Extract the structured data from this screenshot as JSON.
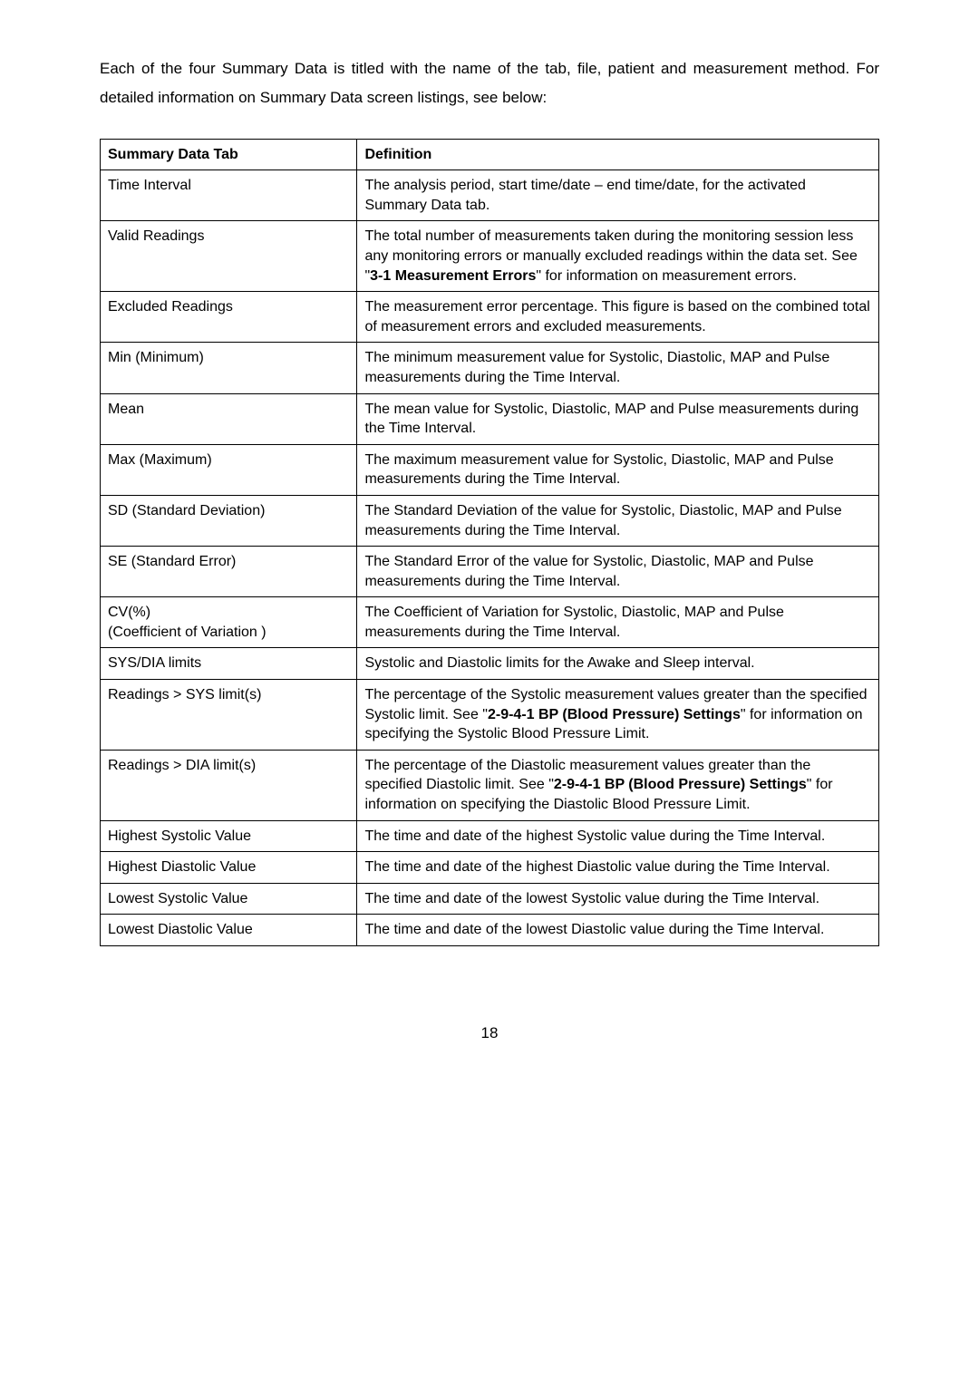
{
  "intro": "Each of the four Summary Data is titled with the name of the tab, file, patient and measurement method.  For detailed information on Summary Data screen listings, see below:",
  "table": {
    "header": {
      "col1": "Summary Data Tab",
      "col2": "Definition"
    },
    "rows": [
      {
        "label": "Time Interval",
        "def_parts": [
          {
            "t": "text",
            "v": "The analysis period, start time/date – end time/date, for the activated Summary Data tab."
          }
        ]
      },
      {
        "label": "Valid Readings",
        "def_parts": [
          {
            "t": "text",
            "v": "The total number of measurements taken during the monitoring session less any monitoring errors or manually excluded readings within the data set. See \""
          },
          {
            "t": "bold",
            "v": "3-1  Measurement Errors"
          },
          {
            "t": "text",
            "v": "\" for information on measurement errors."
          }
        ]
      },
      {
        "label": "Excluded Readings",
        "def_parts": [
          {
            "t": "text",
            "v": "The measurement error percentage. This figure is based on the combined total of measurement errors and excluded measurements."
          }
        ]
      },
      {
        "label": "Min (Minimum)",
        "def_parts": [
          {
            "t": "text",
            "v": "The minimum measurement value for Systolic, Diastolic, MAP and Pulse measurements during the Time Interval."
          }
        ]
      },
      {
        "label": "Mean",
        "def_parts": [
          {
            "t": "text",
            "v": "The mean value for Systolic, Diastolic, MAP and Pulse measurements during the Time Interval."
          }
        ]
      },
      {
        "label": "Max (Maximum)",
        "def_parts": [
          {
            "t": "text",
            "v": "The maximum measurement value for Systolic, Diastolic, MAP and Pulse measurements during the Time Interval."
          }
        ]
      },
      {
        "label": "SD (Standard Deviation)",
        "def_parts": [
          {
            "t": "text",
            "v": "The Standard Deviation of the value for Systolic, Diastolic, MAP and Pulse measurements during the Time Interval."
          }
        ]
      },
      {
        "label": "SE (Standard Error)",
        "def_parts": [
          {
            "t": "text",
            "v": "The Standard Error of the value for Systolic, Diastolic, MAP and Pulse measurements during the Time Interval."
          }
        ]
      },
      {
        "label": "CV(%)\n(Coefficient of Variation )",
        "def_parts": [
          {
            "t": "text",
            "v": "The Coefficient of Variation for Systolic, Diastolic, MAP and Pulse measurements during the Time Interval."
          }
        ]
      },
      {
        "label": "SYS/DIA limits",
        "def_parts": [
          {
            "t": "text",
            "v": "Systolic and Diastolic limits for the Awake and Sleep interval."
          }
        ]
      },
      {
        "label": "Readings > SYS limit(s)",
        "def_parts": [
          {
            "t": "text",
            "v": "The percentage of the Systolic measurement values greater than the specified Systolic limit. See \""
          },
          {
            "t": "bold",
            "v": "2-9-4-1 BP (Blood Pressure) Settings"
          },
          {
            "t": "text",
            "v": "\" for information on specifying the Systolic Blood Pressure Limit."
          }
        ]
      },
      {
        "label": "Readings > DIA limit(s)",
        "def_parts": [
          {
            "t": "text",
            "v": "The percentage of the Diastolic measurement values greater than the specified Diastolic limit. See \""
          },
          {
            "t": "bold",
            "v": "2-9-4-1  BP (Blood Pressure) Settings"
          },
          {
            "t": "text",
            "v": "\" for information on specifying the Diastolic Blood Pressure Limit."
          }
        ]
      },
      {
        "label": "Highest Systolic Value",
        "def_parts": [
          {
            "t": "text",
            "v": "The time and date of the highest Systolic value during the Time Interval."
          }
        ]
      },
      {
        "label": "Highest Diastolic Value",
        "def_parts": [
          {
            "t": "text",
            "v": "The time and date of the highest Diastolic value during the Time Interval."
          }
        ]
      },
      {
        "label": "Lowest Systolic Value",
        "def_parts": [
          {
            "t": "text",
            "v": "The time and date of the lowest Systolic value during the Time Interval."
          }
        ]
      },
      {
        "label": "Lowest Diastolic Value",
        "def_parts": [
          {
            "t": "text",
            "v": "The time and date of the lowest Diastolic value during the Time Interval."
          }
        ]
      }
    ]
  },
  "page_number": "18"
}
